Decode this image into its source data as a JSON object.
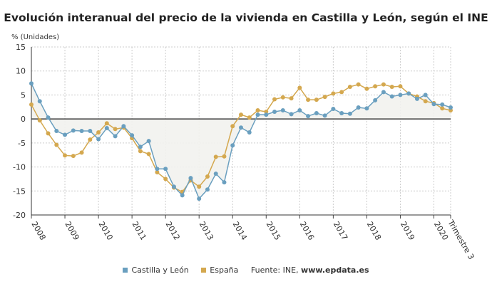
{
  "chart_data": {
    "type": "line",
    "title": "Evolución interanual del precio de la vivienda en Castilla y León, según el INE",
    "ylabel": "% (Unidades)",
    "xlabel": "",
    "ylim": [
      -20,
      15
    ],
    "yticks": [
      15,
      10,
      5,
      0,
      -5,
      -10,
      -15,
      -20
    ],
    "x_tick_labels": [
      "2008",
      "2009",
      "2010",
      "2011",
      "2012",
      "2013",
      "2014",
      "2015",
      "2016",
      "2017",
      "2018",
      "2019",
      "2020",
      "Trimestre 3"
    ],
    "x_frequency": "quarterly, 2008 T1 – 2020 T3",
    "grid": true,
    "legend_position": "bottom",
    "series": [
      {
        "name": "Castilla y León",
        "color": "#6a9fbf",
        "values": [
          7.4,
          3.7,
          0.3,
          -2.5,
          -3.3,
          -2.4,
          -2.5,
          -2.5,
          -4.2,
          -1.9,
          -3.6,
          -1.5,
          -3.4,
          -5.8,
          -4.6,
          -10.4,
          -10.4,
          -14.1,
          -15.9,
          -12.3,
          -16.6,
          -14.7,
          -11.4,
          -13.2,
          -5.5,
          -1.8,
          -2.8,
          0.9,
          0.9,
          1.5,
          1.8,
          1.0,
          1.8,
          0.6,
          1.2,
          0.7,
          2.1,
          1.2,
          1.1,
          2.4,
          2.2,
          3.9,
          5.6,
          4.7,
          5.0,
          5.3,
          4.2,
          5.0,
          3.1,
          3.0,
          2.4
        ]
      },
      {
        "name": "España",
        "color": "#d4a84f",
        "values": [
          3.0,
          -0.3,
          -3.0,
          -5.4,
          -7.6,
          -7.7,
          -7.0,
          -4.3,
          -2.8,
          -0.9,
          -2.1,
          -1.8,
          -4.0,
          -6.7,
          -7.3,
          -11.1,
          -12.5,
          -14.3,
          -15.2,
          -12.8,
          -14.1,
          -12.0,
          -7.9,
          -7.8,
          -1.5,
          0.9,
          0.3,
          1.8,
          1.5,
          4.1,
          4.5,
          4.3,
          6.5,
          4.0,
          4.0,
          4.6,
          5.3,
          5.6,
          6.7,
          7.2,
          6.3,
          6.8,
          7.2,
          6.7,
          6.8,
          5.3,
          4.7,
          3.7,
          3.3,
          2.2,
          1.8
        ]
      }
    ]
  },
  "legend": {
    "source_label": "Fuente: INE,",
    "source_site": "www.epdata.es"
  }
}
